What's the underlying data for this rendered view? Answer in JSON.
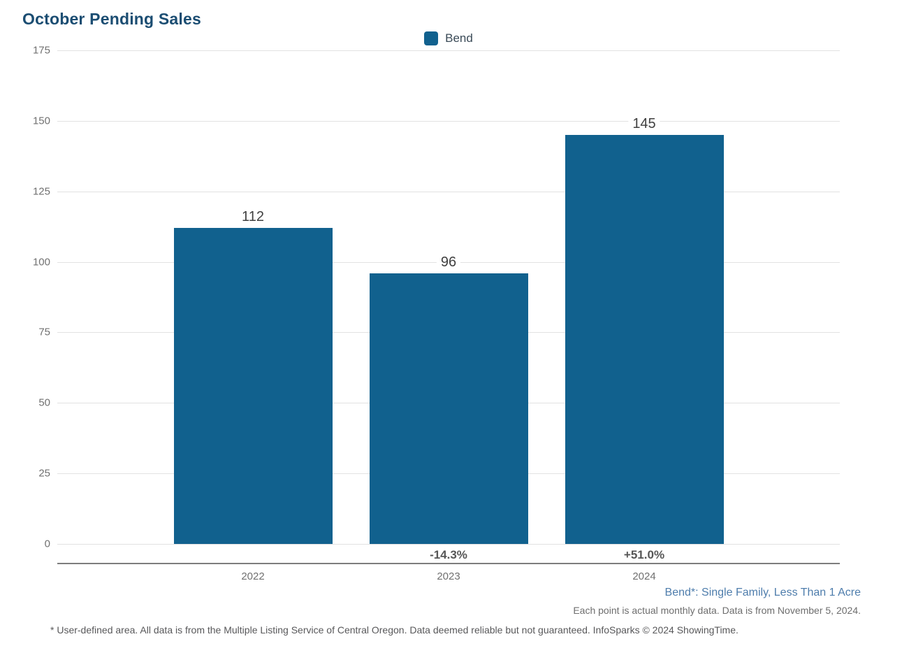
{
  "chart": {
    "title": "October Pending Sales",
    "legend": {
      "label": "Bend",
      "swatch_color": "#11618e",
      "position": "top-center"
    }
  },
  "chart_data": {
    "type": "bar",
    "title": "October Pending Sales",
    "categories": [
      "2022",
      "2023",
      "2024"
    ],
    "series": [
      {
        "name": "Bend",
        "color": "#11618e",
        "values": [
          112,
          96,
          145
        ],
        "value_labels": [
          "112",
          "96",
          "145"
        ],
        "pct_change_labels": [
          "",
          "-14.3%",
          "+51.0%"
        ]
      }
    ],
    "xlabel": "",
    "ylabel": "",
    "ylim": [
      0,
      175
    ],
    "yticks": [
      0,
      25,
      50,
      75,
      100,
      125,
      150,
      175
    ],
    "grid": true,
    "legend_position": "top-center"
  },
  "footnotes": {
    "series_definition": "Bend*: Single Family, Less Than 1 Acre",
    "data_note": "Each point is actual monthly data. Data is from November 5, 2024.",
    "disclaimer": "* User-defined area. All data is from the Multiple Listing Service of Central Oregon. Data deemed reliable but not guaranteed. InfoSparks © 2024 ShowingTime."
  },
  "colors": {
    "bar": "#11618e",
    "title": "#1b4d72",
    "series_footnote": "#4e7dac",
    "gridline": "#e2e2e2",
    "axis_line": "#7d7d7d",
    "tick_text": "#707070",
    "value_label": "#404040",
    "pct_label": "#565656"
  }
}
